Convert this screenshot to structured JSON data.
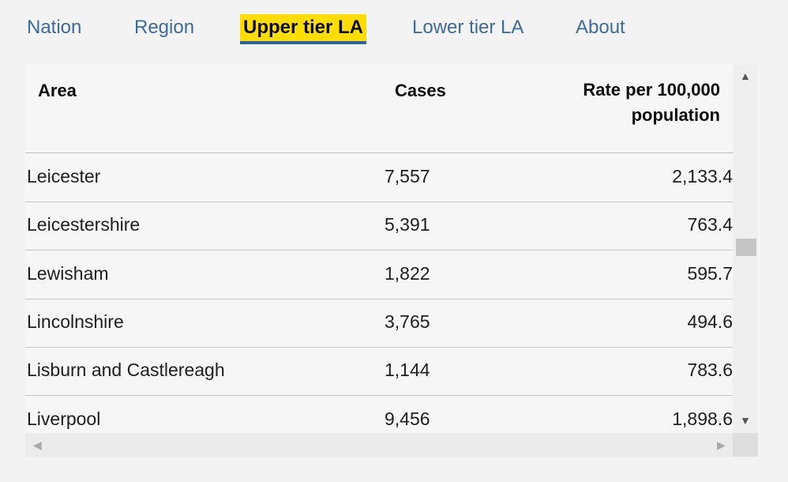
{
  "tabs": [
    {
      "label": "Nation"
    },
    {
      "label": "Region"
    },
    {
      "label": "Upper tier LA"
    },
    {
      "label": "Lower tier LA"
    },
    {
      "label": "About"
    }
  ],
  "table": {
    "headers": {
      "area": "Area",
      "cases": "Cases",
      "rate_line1": "Rate per 100,000",
      "rate_line2": "population"
    },
    "rows": [
      {
        "area": "Leicester",
        "cases": "7,557",
        "rate": "2,133.4"
      },
      {
        "area": "Leicestershire",
        "cases": "5,391",
        "rate": "763.4"
      },
      {
        "area": "Lewisham",
        "cases": "1,822",
        "rate": "595.7"
      },
      {
        "area": "Lincolnshire",
        "cases": "3,765",
        "rate": "494.6"
      },
      {
        "area": "Lisburn and Castlereagh",
        "cases": "1,144",
        "rate": "783.6"
      },
      {
        "area": "Liverpool",
        "cases": "9,456",
        "rate": "1,898.6"
      }
    ]
  },
  "scroll": {
    "up": "▲",
    "down": "▼",
    "left": "◀",
    "right": "▶"
  }
}
